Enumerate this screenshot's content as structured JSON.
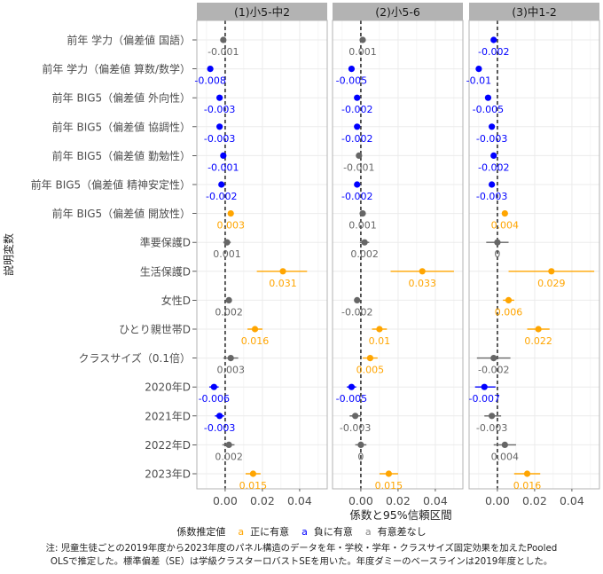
{
  "chart_data": {
    "type": "scatter",
    "subtype": "coefficient-plot-with-95ci",
    "xlabel": "係数と95%信頼区間",
    "ylabel": "説明変数",
    "xticks": [
      0.0,
      0.02,
      0.04
    ],
    "xtick_labels": [
      "0.00",
      "0.02",
      "0.04"
    ],
    "xlim": [
      -0.0152,
      0.0548
    ],
    "grid": true,
    "reference_line": 0,
    "legend": {
      "title": "係数推定値",
      "position": "bottom",
      "entries": [
        {
          "key": "pos",
          "label": "正に有意",
          "color": "#FFA500"
        },
        {
          "key": "neg",
          "label": "負に有意",
          "color": "#0000FF"
        },
        {
          "key": "ns",
          "label": "有意差なし",
          "color": "#666666"
        }
      ]
    },
    "variables": [
      "前年 学力（偏差値 国語）",
      "前年 学力（偏差値 算数/数学）",
      "前年 BIG5（偏差値 外向性）",
      "前年 BIG5（偏差値 協調性）",
      "前年 BIG5（偏差値 勤勉性）",
      "前年 BIG5（偏差値 精神安定性）",
      "前年 BIG5（偏差値 開放性）",
      "準要保護D",
      "生活保護D",
      "女性D",
      "ひとり親世帯D",
      "クラスサイズ（0.1倍）",
      "2020年D",
      "2021年D",
      "2022年D",
      "2023年D"
    ],
    "panels": [
      {
        "title": "(1)小5-中2",
        "estimates": [
          {
            "est": -0.001,
            "lo": -0.0015,
            "hi": -0.0005,
            "sig": "ns",
            "label": "-0.001"
          },
          {
            "est": -0.008,
            "lo": -0.0088,
            "hi": -0.0072,
            "sig": "neg",
            "label": "-0.008"
          },
          {
            "est": -0.003,
            "lo": -0.0036,
            "hi": -0.0024,
            "sig": "neg",
            "label": "-0.003"
          },
          {
            "est": -0.003,
            "lo": -0.0036,
            "hi": -0.0024,
            "sig": "neg",
            "label": "-0.003"
          },
          {
            "est": -0.001,
            "lo": -0.0016,
            "hi": -0.0004,
            "sig": "neg",
            "label": "-0.001"
          },
          {
            "est": -0.002,
            "lo": -0.0026,
            "hi": -0.0014,
            "sig": "neg",
            "label": "-0.002"
          },
          {
            "est": 0.003,
            "lo": 0.0024,
            "hi": 0.0036,
            "sig": "pos",
            "label": "0.003"
          },
          {
            "est": 0.001,
            "lo": -0.001,
            "hi": 0.003,
            "sig": "ns",
            "label": "0.001"
          },
          {
            "est": 0.031,
            "lo": 0.017,
            "hi": 0.044,
            "sig": "pos",
            "label": "0.031"
          },
          {
            "est": 0.002,
            "lo": 0.001,
            "hi": 0.003,
            "sig": "ns",
            "label": "0.002"
          },
          {
            "est": 0.016,
            "lo": 0.012,
            "hi": 0.02,
            "sig": "pos",
            "label": "0.016"
          },
          {
            "est": 0.003,
            "lo": -0.001,
            "hi": 0.007,
            "sig": "ns",
            "label": "0.003"
          },
          {
            "est": -0.006,
            "lo": -0.0085,
            "hi": -0.0035,
            "sig": "neg",
            "label": "-0.006"
          },
          {
            "est": -0.003,
            "lo": -0.0055,
            "hi": -0.0005,
            "sig": "neg",
            "label": "-0.003"
          },
          {
            "est": 0.002,
            "lo": -0.0015,
            "hi": 0.005,
            "sig": "ns",
            "label": "0.002"
          },
          {
            "est": 0.015,
            "lo": 0.011,
            "hi": 0.019,
            "sig": "pos",
            "label": "0.015"
          }
        ]
      },
      {
        "title": "(2)小5-6",
        "estimates": [
          {
            "est": 0.001,
            "lo": 0.0005,
            "hi": 0.0015,
            "sig": "ns",
            "label": "0.001"
          },
          {
            "est": -0.005,
            "lo": -0.006,
            "hi": -0.004,
            "sig": "neg",
            "label": "-0.005"
          },
          {
            "est": -0.002,
            "lo": -0.0028,
            "hi": -0.0012,
            "sig": "neg",
            "label": "-0.002"
          },
          {
            "est": -0.002,
            "lo": -0.0028,
            "hi": -0.0012,
            "sig": "neg",
            "label": "-0.002"
          },
          {
            "est": -0.001,
            "lo": -0.0016,
            "hi": -0.0004,
            "sig": "ns",
            "label": "-0.001"
          },
          {
            "est": -0.002,
            "lo": -0.0028,
            "hi": -0.0012,
            "sig": "neg",
            "label": "-0.002"
          },
          {
            "est": 0.001,
            "lo": 0.0,
            "hi": 0.002,
            "sig": "ns",
            "label": "0.001"
          },
          {
            "est": 0.002,
            "lo": -0.0005,
            "hi": 0.0045,
            "sig": "ns",
            "label": "0.002"
          },
          {
            "est": 0.033,
            "lo": 0.016,
            "hi": 0.05,
            "sig": "pos",
            "label": "0.033"
          },
          {
            "est": -0.002,
            "lo": -0.003,
            "hi": -0.001,
            "sig": "ns",
            "label": "-0.002"
          },
          {
            "est": 0.01,
            "lo": 0.006,
            "hi": 0.014,
            "sig": "pos",
            "label": "0.01"
          },
          {
            "est": 0.005,
            "lo": 0.001,
            "hi": 0.009,
            "sig": "pos",
            "label": "0.005"
          },
          {
            "est": -0.005,
            "lo": -0.0075,
            "hi": -0.0025,
            "sig": "neg",
            "label": "-0.005"
          },
          {
            "est": -0.003,
            "lo": -0.006,
            "hi": 0.0,
            "sig": "ns",
            "label": "-0.003"
          },
          {
            "est": 0.0,
            "lo": -0.003,
            "hi": 0.003,
            "sig": "ns",
            "label": "0"
          },
          {
            "est": 0.015,
            "lo": 0.01,
            "hi": 0.02,
            "sig": "pos",
            "label": "0.015"
          }
        ]
      },
      {
        "title": "(3)中1-2",
        "estimates": [
          {
            "est": -0.002,
            "lo": -0.0028,
            "hi": -0.0012,
            "sig": "neg",
            "label": "-0.002"
          },
          {
            "est": -0.01,
            "lo": -0.011,
            "hi": -0.009,
            "sig": "neg",
            "label": "-0.01"
          },
          {
            "est": -0.005,
            "lo": -0.006,
            "hi": -0.004,
            "sig": "neg",
            "label": "-0.005"
          },
          {
            "est": -0.003,
            "lo": -0.004,
            "hi": -0.002,
            "sig": "neg",
            "label": "-0.003"
          },
          {
            "est": -0.002,
            "lo": -0.003,
            "hi": -0.001,
            "sig": "neg",
            "label": "-0.002"
          },
          {
            "est": -0.003,
            "lo": -0.004,
            "hi": -0.002,
            "sig": "neg",
            "label": "-0.003"
          },
          {
            "est": 0.004,
            "lo": 0.003,
            "hi": 0.005,
            "sig": "pos",
            "label": "0.004"
          },
          {
            "est": 0.0,
            "lo": -0.006,
            "hi": 0.006,
            "sig": "ns",
            "label": "0"
          },
          {
            "est": 0.029,
            "lo": 0.006,
            "hi": 0.052,
            "sig": "pos",
            "label": "0.029"
          },
          {
            "est": 0.006,
            "lo": 0.003,
            "hi": 0.009,
            "sig": "pos",
            "label": "0.006"
          },
          {
            "est": 0.022,
            "lo": 0.016,
            "hi": 0.028,
            "sig": "pos",
            "label": "0.022"
          },
          {
            "est": -0.002,
            "lo": -0.011,
            "hi": 0.007,
            "sig": "ns",
            "label": "-0.002"
          },
          {
            "est": -0.007,
            "lo": -0.012,
            "hi": -0.001,
            "sig": "neg",
            "label": "-0.007"
          },
          {
            "est": -0.003,
            "lo": -0.007,
            "hi": 0.002,
            "sig": "ns",
            "label": "-0.003"
          },
          {
            "est": 0.004,
            "lo": -0.002,
            "hi": 0.01,
            "sig": "ns",
            "label": "0.004"
          },
          {
            "est": 0.016,
            "lo": 0.009,
            "hi": 0.023,
            "sig": "pos",
            "label": "0.016"
          }
        ]
      }
    ]
  },
  "legend_text": {
    "title": "係数推定値",
    "glyph": "a",
    "pos": "正に有意",
    "neg": "負に有意",
    "ns": "有意差なし"
  },
  "note": {
    "line1": "注: 児童生徒ごとの2019年度から2023年度のパネル構造のデータを年・学校・学年・クラスサイズ固定効果を加えたPooled",
    "line2": "OLSで推定した。標準偏差（SE）は学級クラスターロバストSEを用いた。年度ダミーのベースラインは2019年度とした。"
  },
  "colors": {
    "pos": "#FFA500",
    "neg": "#0000FF",
    "ns": "#666666",
    "strip_bg": "#B3B3B3",
    "panel_border": "#B3B3B3",
    "grid": "#EBEBEB",
    "text": "#333333"
  }
}
